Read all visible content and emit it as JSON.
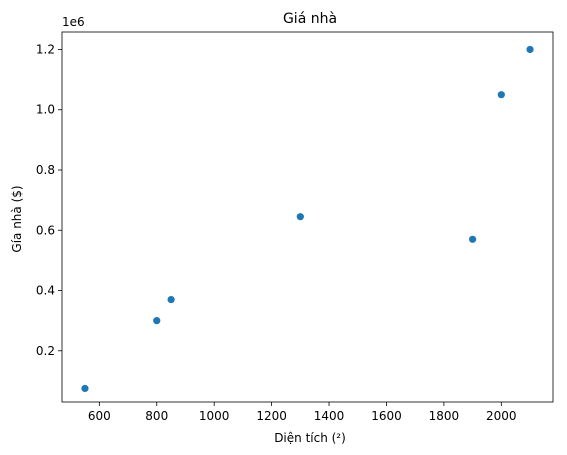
{
  "chart_data": {
    "type": "scatter",
    "title": "Giá nhà",
    "xlabel": "Diện tích (²)",
    "ylabel": "Gía nhà ($)",
    "y_offset_label": "1e6",
    "xlim": [
      470,
      2180
    ],
    "ylim": [
      30000,
      1258000
    ],
    "x_ticks": [
      {
        "value": 600,
        "label": "600"
      },
      {
        "value": 800,
        "label": "800"
      },
      {
        "value": 1000,
        "label": "1000"
      },
      {
        "value": 1200,
        "label": "1200"
      },
      {
        "value": 1400,
        "label": "1400"
      },
      {
        "value": 1600,
        "label": "1600"
      },
      {
        "value": 1800,
        "label": "1800"
      },
      {
        "value": 2000,
        "label": "2000"
      }
    ],
    "y_ticks": [
      {
        "value": 200000,
        "label": "0.2"
      },
      {
        "value": 400000,
        "label": "0.4"
      },
      {
        "value": 600000,
        "label": "0.6"
      },
      {
        "value": 800000,
        "label": "0.8"
      },
      {
        "value": 1000000,
        "label": "1.0"
      },
      {
        "value": 1200000,
        "label": "1.2"
      }
    ],
    "points": [
      {
        "x": 550,
        "y": 75000
      },
      {
        "x": 800,
        "y": 300000
      },
      {
        "x": 850,
        "y": 370000
      },
      {
        "x": 1300,
        "y": 645000
      },
      {
        "x": 1900,
        "y": 570000
      },
      {
        "x": 2000,
        "y": 1050000
      },
      {
        "x": 2100,
        "y": 1200000
      }
    ],
    "grid": false,
    "marker_color": "#1f77b4"
  }
}
